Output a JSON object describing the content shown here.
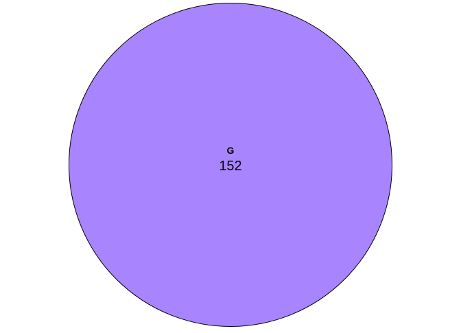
{
  "chart_data": {
    "type": "pie",
    "sets": [
      {
        "name": "G",
        "count": 152,
        "fill": "#a884ff",
        "stroke": "#000000"
      }
    ]
  }
}
